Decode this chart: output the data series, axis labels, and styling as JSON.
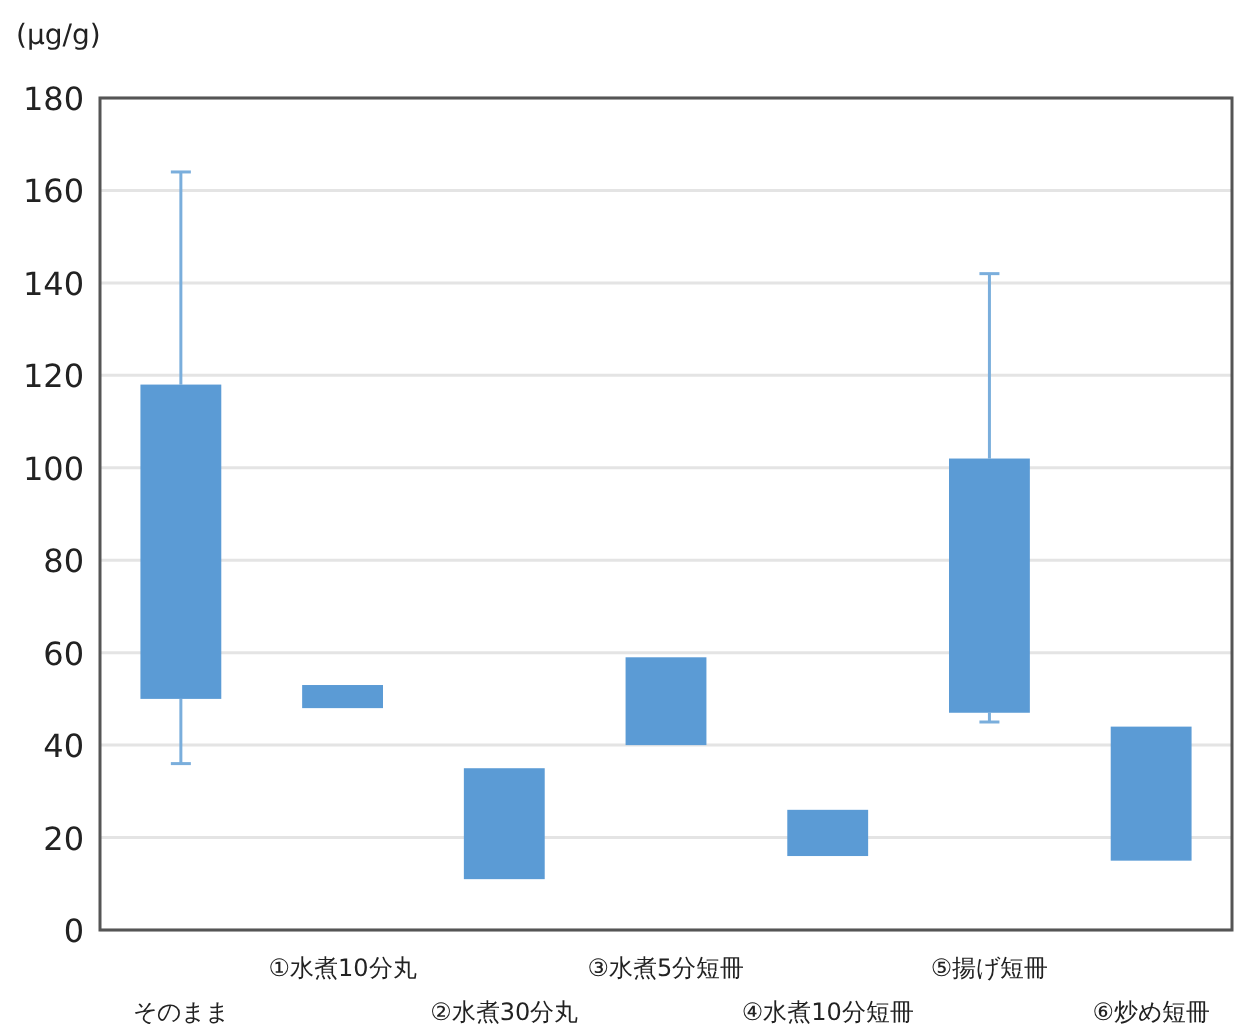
{
  "chart_data": {
    "type": "bar",
    "ylabel": "(μg/g)",
    "categories": [
      "そのまま",
      "①水煮10分丸",
      "②水煮30分丸",
      "③水煮5分短冊",
      "④水煮10分短冊",
      "⑤揚げ短冊",
      "⑥炒め短冊"
    ],
    "base": [
      50,
      48,
      11,
      40,
      16,
      47,
      15
    ],
    "values": [
      68,
      5,
      24,
      19,
      10,
      55,
      29
    ],
    "errors": [
      [
        36,
        164
      ],
      null,
      null,
      null,
      null,
      [
        45,
        142
      ],
      null
    ],
    "color": "#5b9bd5",
    "ylim": [
      0,
      180
    ],
    "yticks": [
      0,
      20,
      40,
      60,
      80,
      100,
      120,
      140,
      160,
      180
    ],
    "grid": "y"
  }
}
